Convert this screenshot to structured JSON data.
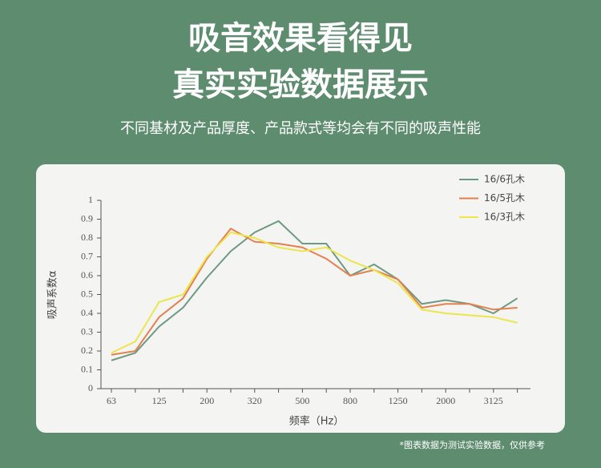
{
  "header": {
    "title_line1": "吸音效果看得见",
    "title_line2": "真实实验数据展示",
    "subtitle": "不同基材及产品厚度、产品款式等均会有不同的吸声性能"
  },
  "chart_data": {
    "type": "line",
    "ylabel": "吸声系数α",
    "xlabel": "频率（Hz）",
    "categories": [
      "63",
      null,
      "125",
      null,
      "200",
      null,
      "320",
      null,
      "500",
      null,
      "800",
      null,
      "1250",
      null,
      "2000",
      null,
      "3125",
      null
    ],
    "series": [
      {
        "name": "16/6孔木",
        "color": "#6e9a82",
        "values": [
          0.15,
          0.19,
          0.33,
          0.43,
          0.59,
          0.73,
          0.83,
          0.89,
          0.77,
          0.77,
          0.6,
          0.66,
          0.58,
          0.45,
          0.47,
          0.45,
          0.4,
          0.48
        ]
      },
      {
        "name": "16/5孔木",
        "color": "#e4804e",
        "values": [
          0.18,
          0.2,
          0.38,
          0.48,
          0.69,
          0.85,
          0.78,
          0.77,
          0.75,
          0.69,
          0.6,
          0.63,
          0.58,
          0.43,
          0.45,
          0.45,
          0.42,
          0.43
        ]
      },
      {
        "name": "16/3孔木",
        "color": "#ece54c",
        "values": [
          0.19,
          0.25,
          0.46,
          0.5,
          0.7,
          0.83,
          0.8,
          0.75,
          0.73,
          0.75,
          0.68,
          0.63,
          0.56,
          0.42,
          0.4,
          0.39,
          0.38,
          0.35
        ]
      }
    ],
    "ylim": [
      0,
      1
    ],
    "yticks": [
      0,
      0.1,
      0.2,
      0.3,
      0.4,
      0.5,
      0.6,
      0.7,
      0.8,
      0.9,
      1
    ],
    "legend": "upper right"
  },
  "footnote": "*图表数据为测试实验数据，仅供参考"
}
